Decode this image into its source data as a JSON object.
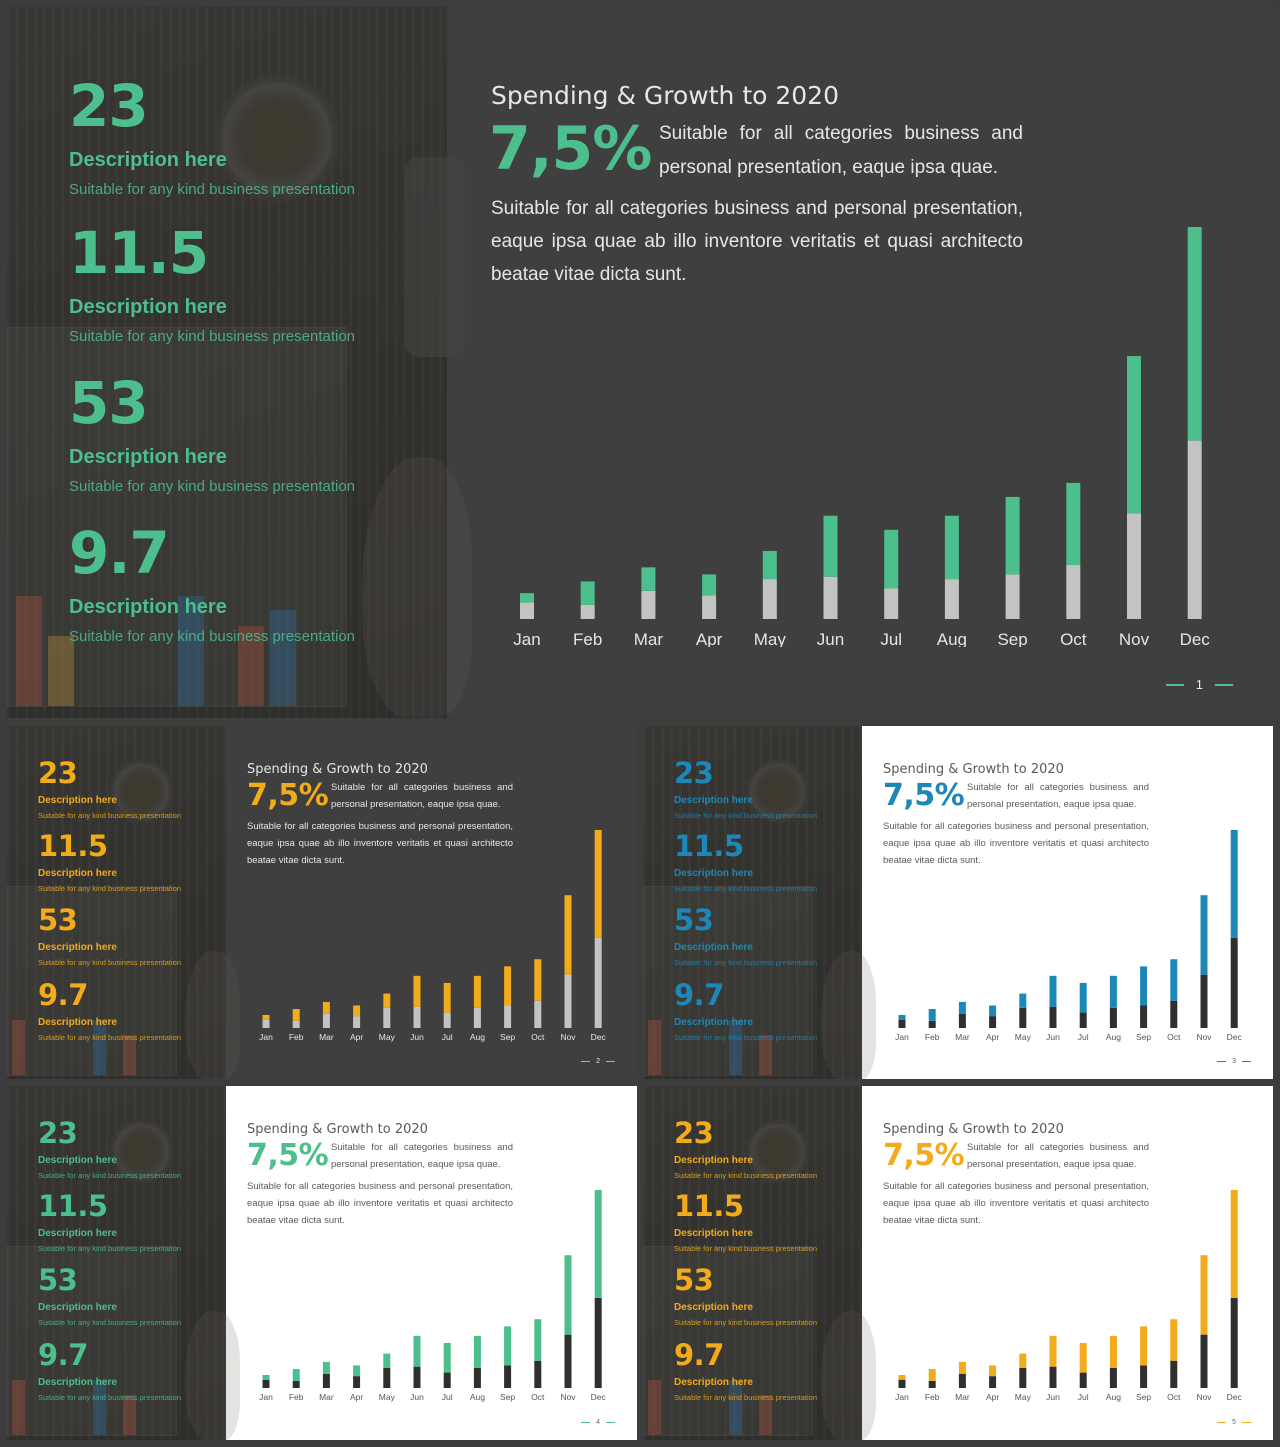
{
  "months": [
    "Jan",
    "Feb",
    "Mar",
    "Apr",
    "May",
    "Jun",
    "Jul",
    "Aug",
    "Sep",
    "Oct",
    "Nov",
    "Dec"
  ],
  "stats": [
    {
      "value": "23",
      "heading": "Description here",
      "sub": "Suitable for any kind business presentation"
    },
    {
      "value": "11.5",
      "heading": "Description here",
      "sub": "Suitable for any kind business presentation"
    },
    {
      "value": "53",
      "heading": "Description here",
      "sub": "Suitable for any kind business presentation"
    },
    {
      "value": "9.7",
      "heading": "Description here",
      "sub": "Suitable for any kind business presentation"
    }
  ],
  "title": "Spending & Growth to 2020",
  "percent": "7,5%",
  "desc1": "Suitable for all categories business and personal presentation, eaque ipsa quae.",
  "desc2": "Suitable for all categories business and personal presentation, eaque ipsa quae ab illo inventore veritatis et quasi architecto beatae vitae dicta sunt.",
  "slides": [
    {
      "id": "s1",
      "page": "1",
      "accent": "#4cbf8c",
      "theme": "dark",
      "text": "#e6e6e6",
      "base": "#c3c3c3"
    },
    {
      "id": "s2",
      "page": "2",
      "accent": "#f2ab1b",
      "theme": "dark",
      "text": "#e6e6e6",
      "base": "#c3c3c3"
    },
    {
      "id": "s3",
      "page": "3",
      "accent": "#1d88b8",
      "theme": "light",
      "text": "#5a5a5a",
      "base": "#2f2f2f"
    },
    {
      "id": "s4",
      "page": "4",
      "accent": "#4cbf8c",
      "theme": "light",
      "text": "#5a5a5a",
      "base": "#2f2f2f"
    },
    {
      "id": "s5",
      "page": "5",
      "accent": "#f2ab1b",
      "theme": "light",
      "text": "#5a5a5a",
      "base": "#2f2f2f"
    }
  ],
  "chart_data": {
    "type": "bar",
    "stacked": true,
    "categories": [
      "Jan",
      "Feb",
      "Mar",
      "Apr",
      "May",
      "Jun",
      "Jul",
      "Aug",
      "Sep",
      "Oct",
      "Nov",
      "Dec"
    ],
    "series": [
      {
        "values": [
          7,
          6,
          12,
          10,
          17,
          18,
          13,
          17,
          19,
          23,
          45,
          76
        ]
      },
      {
        "values": [
          4,
          10,
          10,
          9,
          12,
          26,
          25,
          27,
          33,
          35,
          67,
          91
        ]
      }
    ],
    "ylim": [
      0,
      167
    ],
    "grid": false,
    "legend": "none"
  }
}
